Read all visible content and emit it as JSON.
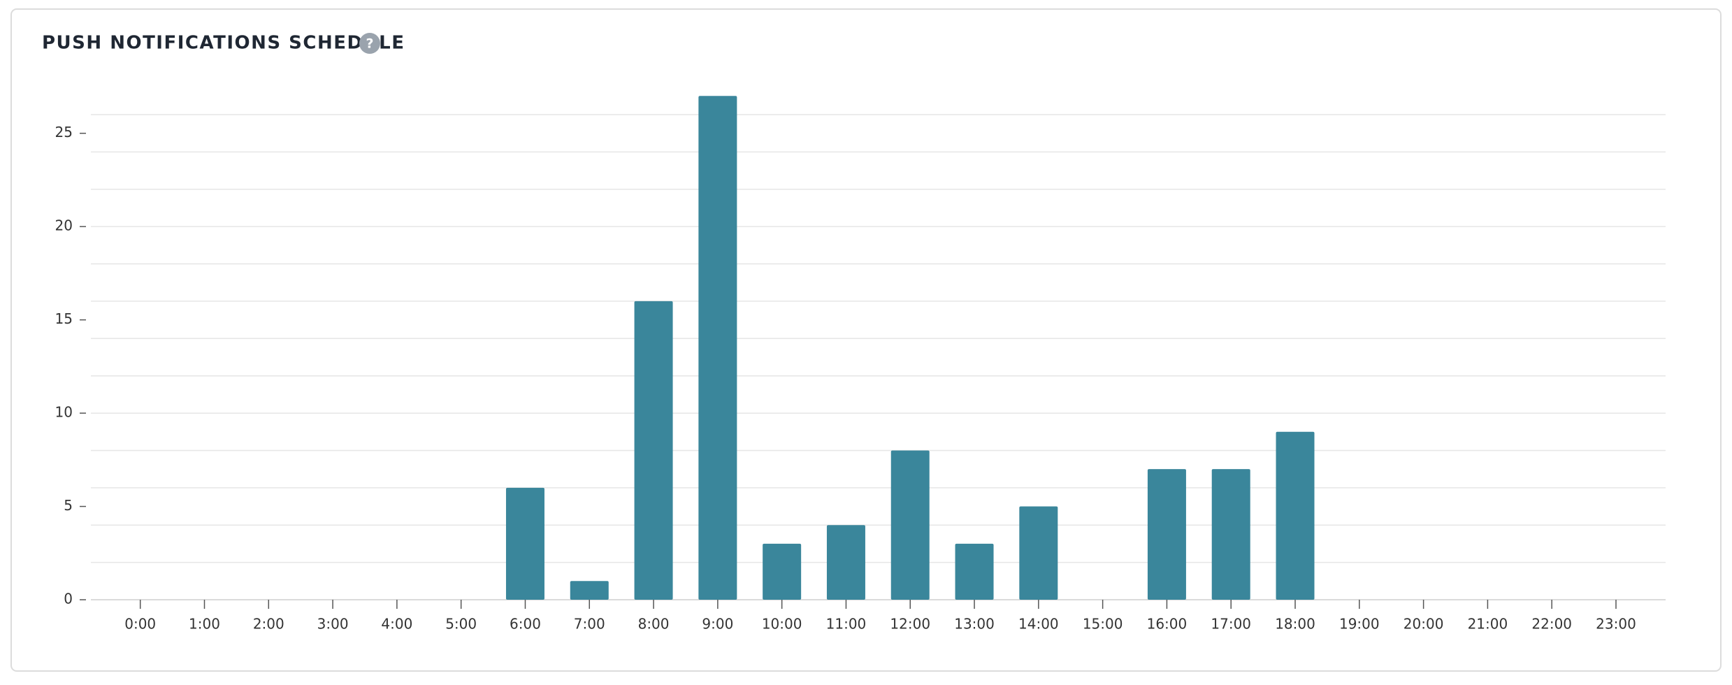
{
  "chart_data": {
    "type": "bar",
    "title": "PUSH NOTIFICATIONS SCHEDULE",
    "help_icon": "?",
    "categories": [
      "0:00",
      "1:00",
      "2:00",
      "3:00",
      "4:00",
      "5:00",
      "6:00",
      "7:00",
      "8:00",
      "9:00",
      "10:00",
      "11:00",
      "12:00",
      "13:00",
      "14:00",
      "15:00",
      "16:00",
      "17:00",
      "18:00",
      "19:00",
      "20:00",
      "21:00",
      "22:00",
      "23:00"
    ],
    "values": [
      0,
      0,
      0,
      0,
      0,
      0,
      6,
      1,
      16,
      27,
      3,
      4,
      8,
      3,
      5,
      0,
      7,
      7,
      9,
      0,
      0,
      0,
      0,
      0
    ],
    "color": "#3a869b",
    "ylim": [
      0,
      26
    ],
    "yticks": [
      0,
      5,
      10,
      15,
      20,
      25
    ],
    "grid": true,
    "ygrid": [
      0,
      2,
      4,
      6,
      8,
      10,
      12,
      14,
      16,
      18,
      20,
      22,
      24,
      26
    ]
  }
}
